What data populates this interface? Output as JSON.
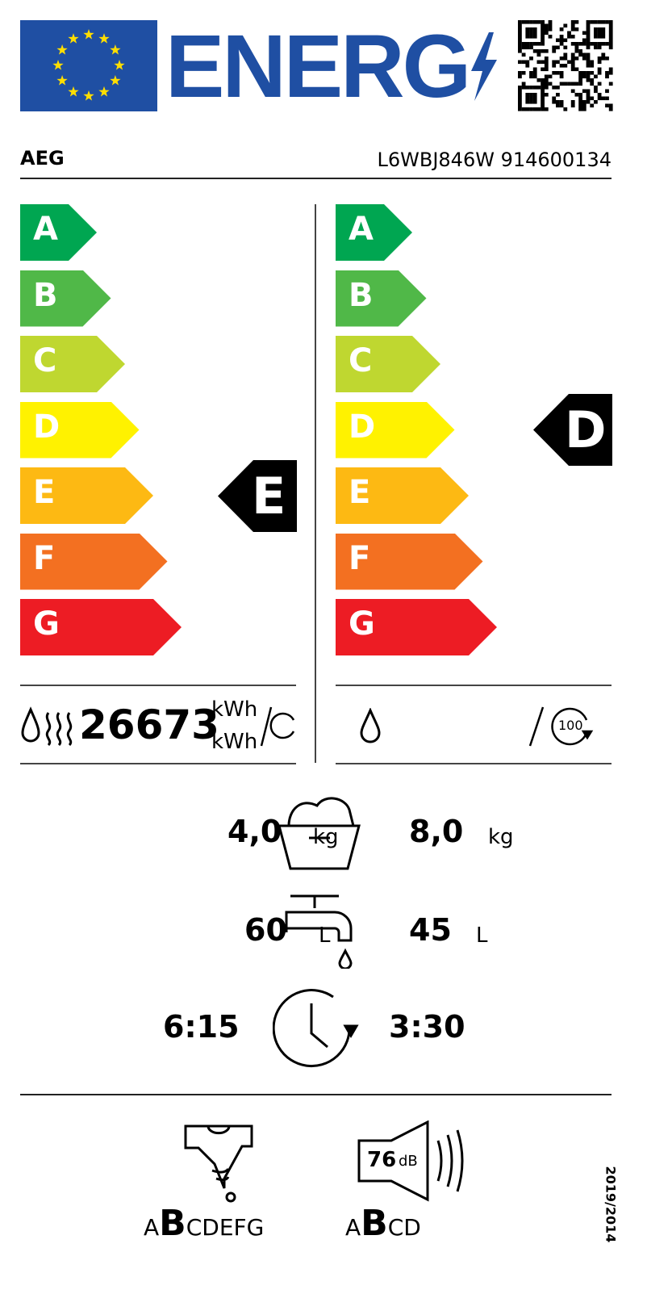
{
  "header": {
    "logo_text": "ENERG",
    "brand": "AEG",
    "model": "L6WBJ846W 914600134"
  },
  "scale": {
    "classes": [
      "A",
      "B",
      "C",
      "D",
      "E",
      "F",
      "G"
    ],
    "colors": [
      "#00a651",
      "#50b848",
      "#bfd730",
      "#fff200",
      "#fdb913",
      "#f37021",
      "#ed1c24"
    ]
  },
  "left": {
    "rating": "E",
    "energy_value": "26673",
    "unit1": "kWh",
    "unit2": "kWh"
  },
  "right": {
    "rating": "D",
    "cycles": "100"
  },
  "capacity": {
    "left": "4,0",
    "left_unit": "kg",
    "right": "8,0",
    "right_unit": "kg"
  },
  "water": {
    "left": "60",
    "left_unit": "L",
    "right": "45",
    "right_unit": "L"
  },
  "duration": {
    "left": "6:15",
    "right": "3:30"
  },
  "spin": {
    "rating": "B",
    "scale_before": "A",
    "scale_after": "CDEFG"
  },
  "noise": {
    "value": "76",
    "unit": "dB",
    "rating": "B",
    "scale_before": "A",
    "scale_after": "CD"
  },
  "regulation": "2019/2014"
}
